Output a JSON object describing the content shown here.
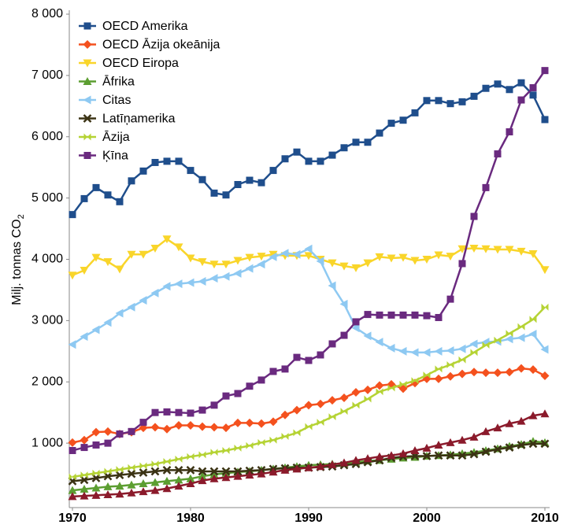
{
  "chart_data": {
    "type": "line",
    "y_label": {
      "text": "Milj. tonnas CO",
      "subscript": "2"
    },
    "x": [
      1970,
      1971,
      1972,
      1973,
      1974,
      1975,
      1976,
      1977,
      1978,
      1979,
      1980,
      1981,
      1982,
      1983,
      1984,
      1985,
      1986,
      1987,
      1988,
      1989,
      1990,
      1991,
      1992,
      1993,
      1994,
      1995,
      1996,
      1997,
      1998,
      1999,
      2000,
      2001,
      2002,
      2003,
      2004,
      2005,
      2006,
      2007,
      2008,
      2009,
      2010
    ],
    "xlim": [
      1970,
      2010
    ],
    "xticks": [
      1970,
      1980,
      1990,
      2000,
      2010
    ],
    "ylim": [
      0,
      8000
    ],
    "yticks": [
      {
        "value": 1000,
        "label": "1 000"
      },
      {
        "value": 2000,
        "label": "2 000"
      },
      {
        "value": 3000,
        "label": "3 000"
      },
      {
        "value": 4000,
        "label": "4 000"
      },
      {
        "value": 5000,
        "label": "5 000"
      },
      {
        "value": 6000,
        "label": "6 000"
      },
      {
        "value": 7000,
        "label": "7 000"
      },
      {
        "value": 8000,
        "label": "8 000"
      }
    ],
    "legend": "top-left",
    "series": [
      {
        "name": "OECD Amerika",
        "color": "#1f4e8c",
        "marker": "square",
        "values": [
          4730,
          4990,
          5170,
          5050,
          4940,
          5280,
          5440,
          5580,
          5600,
          5600,
          5450,
          5300,
          5080,
          5050,
          5220,
          5290,
          5250,
          5450,
          5640,
          5750,
          5600,
          5600,
          5700,
          5820,
          5910,
          5910,
          6060,
          6220,
          6270,
          6390,
          6590,
          6590,
          6540,
          6570,
          6660,
          6790,
          6860,
          6770,
          6880,
          6680,
          6280
        ]
      },
      {
        "name": "OECD Āzija okeānija",
        "color": "#f4511e",
        "marker": "diamond",
        "values": [
          1010,
          1050,
          1180,
          1190,
          1150,
          1180,
          1250,
          1260,
          1230,
          1290,
          1290,
          1270,
          1260,
          1250,
          1330,
          1330,
          1320,
          1350,
          1460,
          1540,
          1620,
          1640,
          1700,
          1740,
          1830,
          1870,
          1940,
          1960,
          1890,
          1980,
          2050,
          2050,
          2090,
          2130,
          2160,
          2150,
          2150,
          2160,
          2220,
          2200,
          2100
        ]
      },
      {
        "name": "OECD Eiropa",
        "color": "#f9d52a",
        "marker": "down",
        "values": [
          3740,
          3820,
          4030,
          3960,
          3840,
          4080,
          4080,
          4180,
          4330,
          4200,
          4020,
          3960,
          3920,
          3920,
          3980,
          4030,
          4050,
          4080,
          4060,
          4060,
          4060,
          4000,
          3940,
          3890,
          3860,
          3940,
          4040,
          4020,
          4030,
          3980,
          4000,
          4070,
          4050,
          4170,
          4180,
          4170,
          4160,
          4160,
          4130,
          4090,
          3830
        ]
      },
      {
        "name": "Āfrika",
        "color": "#5c9e31",
        "marker": "up",
        "values": [
          230,
          250,
          270,
          290,
          300,
          320,
          340,
          360,
          380,
          400,
          420,
          460,
          490,
          510,
          530,
          540,
          560,
          580,
          600,
          620,
          640,
          650,
          660,
          670,
          690,
          710,
          720,
          740,
          760,
          770,
          790,
          800,
          810,
          830,
          850,
          880,
          910,
          950,
          980,
          1030,
          1010
        ]
      },
      {
        "name": "Citas",
        "color": "#8ec9f2",
        "marker": "left",
        "values": [
          2610,
          2740,
          2850,
          2970,
          3120,
          3220,
          3330,
          3450,
          3560,
          3600,
          3620,
          3640,
          3690,
          3720,
          3770,
          3850,
          3920,
          4040,
          4100,
          4080,
          4170,
          3970,
          3570,
          3270,
          2880,
          2750,
          2650,
          2550,
          2500,
          2480,
          2480,
          2500,
          2510,
          2540,
          2620,
          2650,
          2660,
          2700,
          2720,
          2780,
          2530
        ]
      },
      {
        "name": "Latīņamerika",
        "color": "#3b3314",
        "marker": "cross",
        "values": [
          380,
          400,
          430,
          460,
          480,
          500,
          520,
          540,
          560,
          560,
          560,
          540,
          540,
          540,
          540,
          550,
          560,
          580,
          590,
          600,
          600,
          610,
          620,
          640,
          660,
          690,
          720,
          760,
          780,
          790,
          790,
          800,
          800,
          800,
          820,
          860,
          900,
          930,
          970,
          990,
          990
        ]
      },
      {
        "name": "Āzija",
        "color": "#b5d334",
        "marker": "bowtie",
        "values": [
          450,
          480,
          510,
          540,
          570,
          600,
          630,
          660,
          700,
          740,
          780,
          810,
          850,
          880,
          920,
          960,
          1010,
          1050,
          1110,
          1170,
          1270,
          1340,
          1430,
          1520,
          1620,
          1720,
          1840,
          1900,
          1960,
          2020,
          2110,
          2210,
          2280,
          2360,
          2480,
          2600,
          2680,
          2790,
          2900,
          3020,
          3220
        ]
      },
      {
        "name": "Ķīna",
        "color": "#6a2a7f",
        "marker": "square",
        "values": [
          880,
          930,
          970,
          1000,
          1150,
          1190,
          1340,
          1500,
          1510,
          1500,
          1490,
          1540,
          1620,
          1770,
          1810,
          1930,
          2030,
          2170,
          2210,
          2400,
          2350,
          2440,
          2620,
          2760,
          2980,
          3100,
          3090,
          3090,
          3090,
          3090,
          3080,
          3050,
          3350,
          3930,
          4700,
          5170,
          5720,
          6080,
          6600,
          6800,
          7080
        ]
      },
      {
        "color": "#8b1a2b",
        "marker": "up",
        "values": [
          130,
          140,
          150,
          160,
          170,
          190,
          210,
          230,
          260,
          300,
          340,
          390,
          420,
          440,
          460,
          480,
          500,
          530,
          560,
          580,
          600,
          620,
          650,
          680,
          720,
          750,
          780,
          800,
          830,
          880,
          920,
          970,
          1010,
          1050,
          1100,
          1190,
          1250,
          1320,
          1360,
          1450,
          1480
        ]
      }
    ]
  }
}
